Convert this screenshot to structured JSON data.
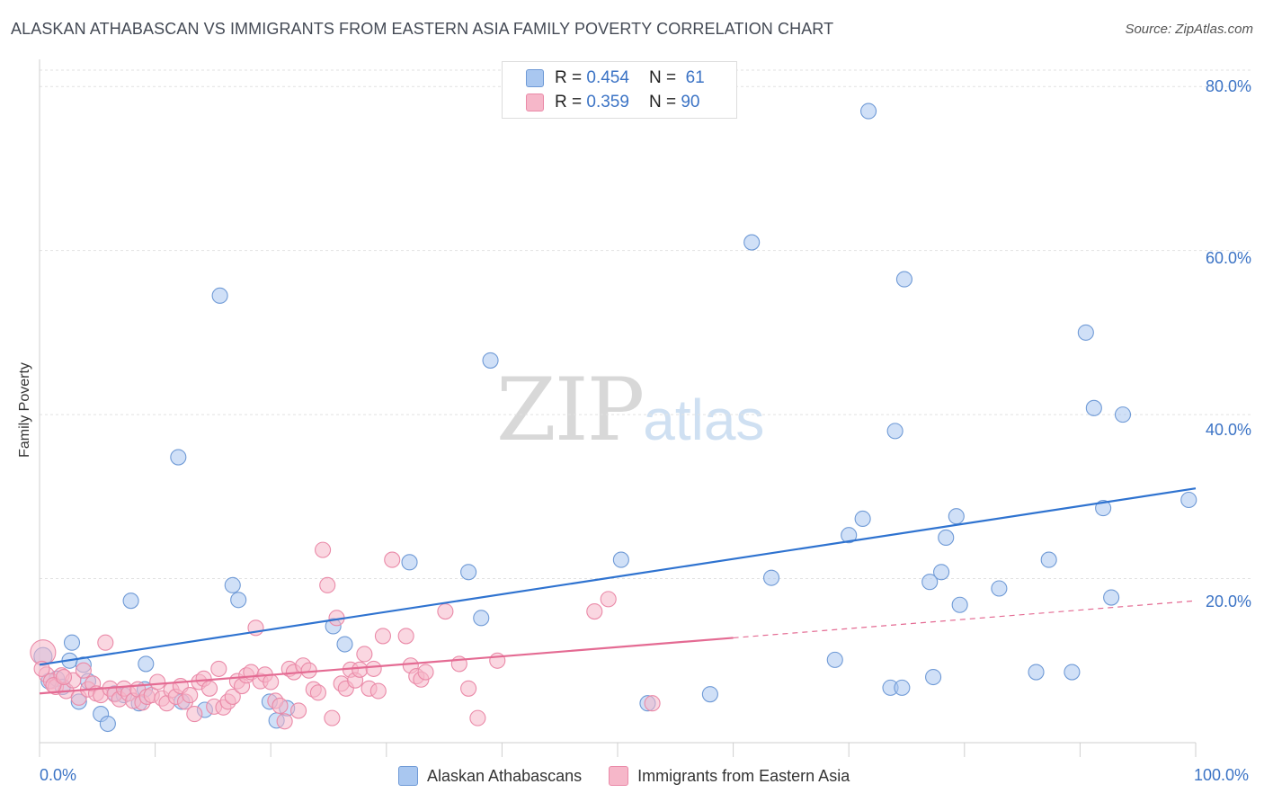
{
  "header": {
    "title": "ALASKAN ATHABASCAN VS IMMIGRANTS FROM EASTERN ASIA FAMILY POVERTY CORRELATION CHART",
    "source": "Source: ZipAtlas.com"
  },
  "watermark": {
    "zip": "ZIP",
    "atlas": "atlas"
  },
  "legend_stats": [
    {
      "r_label": "R = ",
      "r_value": "0.454",
      "n_label": "N = ",
      "n_value": "61",
      "color": "#a9c7f0"
    },
    {
      "r_label": "R = ",
      "r_value": "0.359",
      "n_label": "N = ",
      "n_value": "90",
      "color": "#f6b7c9"
    }
  ],
  "chart_data": {
    "type": "scatter",
    "title": "ALASKAN ATHABASCAN VS IMMIGRANTS FROM EASTERN ASIA FAMILY POVERTY CORRELATION CHART",
    "xlabel": "",
    "ylabel": "Family Poverty",
    "xlim": [
      0,
      100
    ],
    "ylim": [
      0,
      82
    ],
    "grid": true,
    "x_tick_labels": [
      "0.0%",
      "100.0%"
    ],
    "y_ticks": [
      20,
      40,
      60,
      80
    ],
    "y_tick_labels": [
      "20.0%",
      "40.0%",
      "60.0%",
      "80.0%"
    ],
    "series": [
      {
        "name": "Alaskan Athabascans",
        "color": "#a9c7f0",
        "stroke": "#6f9ad6",
        "trend": {
          "x0": 0,
          "y0": 9.5,
          "x1": 100,
          "y1": 31.0,
          "dashed_from": null,
          "color": "#2f73d0"
        },
        "points": [
          [
            0.3,
            10.5
          ],
          [
            0.8,
            7.5
          ],
          [
            1.5,
            7.8
          ],
          [
            2.0,
            6.8
          ],
          [
            2.6,
            10.0
          ],
          [
            2.8,
            12.2
          ],
          [
            3.4,
            5.0
          ],
          [
            3.8,
            9.5
          ],
          [
            4.2,
            7.5
          ],
          [
            5.3,
            3.5
          ],
          [
            5.9,
            2.3
          ],
          [
            6.5,
            6.0
          ],
          [
            7.3,
            5.8
          ],
          [
            7.9,
            17.3
          ],
          [
            8.6,
            4.8
          ],
          [
            9.1,
            6.5
          ],
          [
            9.2,
            9.6
          ],
          [
            12.0,
            34.8
          ],
          [
            12.3,
            5.0
          ],
          [
            14.3,
            4.0
          ],
          [
            15.6,
            54.5
          ],
          [
            16.7,
            19.2
          ],
          [
            17.2,
            17.4
          ],
          [
            19.9,
            5.0
          ],
          [
            20.5,
            2.7
          ],
          [
            21.4,
            4.2
          ],
          [
            25.4,
            14.2
          ],
          [
            26.4,
            12.0
          ],
          [
            32.0,
            22.0
          ],
          [
            37.1,
            20.8
          ],
          [
            38.2,
            15.2
          ],
          [
            39.0,
            46.6
          ],
          [
            50.3,
            22.3
          ],
          [
            52.6,
            4.8
          ],
          [
            58.0,
            5.9
          ],
          [
            61.6,
            61.0
          ],
          [
            63.3,
            20.1
          ],
          [
            68.8,
            10.1
          ],
          [
            70.0,
            25.3
          ],
          [
            71.2,
            27.3
          ],
          [
            71.7,
            77.0
          ],
          [
            73.6,
            6.7
          ],
          [
            74.0,
            38.0
          ],
          [
            74.6,
            6.7
          ],
          [
            74.8,
            56.5
          ],
          [
            77.0,
            19.6
          ],
          [
            77.3,
            8.0
          ],
          [
            78.0,
            20.8
          ],
          [
            78.4,
            25.0
          ],
          [
            79.3,
            27.6
          ],
          [
            79.6,
            16.8
          ],
          [
            83.0,
            18.8
          ],
          [
            86.2,
            8.6
          ],
          [
            87.3,
            22.3
          ],
          [
            89.3,
            8.6
          ],
          [
            90.5,
            50.0
          ],
          [
            91.2,
            40.8
          ],
          [
            92.0,
            28.6
          ],
          [
            92.7,
            17.7
          ],
          [
            93.7,
            40.0
          ],
          [
            99.4,
            29.6
          ]
        ]
      },
      {
        "name": "Immigrants from Eastern Asia",
        "color": "#f6b7c9",
        "stroke": "#ea8aa8",
        "trend": {
          "x0": 0,
          "y0": 6.0,
          "x1": 100,
          "y1": 17.3,
          "dashed_from": 60,
          "color": "#e46b93"
        },
        "points": [
          [
            0.3,
            11.0
          ],
          [
            0.6,
            8.3
          ],
          [
            1.0,
            7.5
          ],
          [
            1.4,
            6.8
          ],
          [
            1.9,
            8.2
          ],
          [
            2.3,
            6.3
          ],
          [
            2.9,
            7.6
          ],
          [
            3.4,
            5.5
          ],
          [
            3.8,
            8.8
          ],
          [
            4.2,
            6.5
          ],
          [
            4.6,
            7.2
          ],
          [
            4.9,
            6.0
          ],
          [
            5.3,
            5.8
          ],
          [
            5.7,
            12.2
          ],
          [
            6.1,
            6.6
          ],
          [
            6.5,
            5.9
          ],
          [
            6.9,
            5.3
          ],
          [
            7.3,
            6.6
          ],
          [
            7.7,
            6.0
          ],
          [
            8.1,
            5.1
          ],
          [
            8.5,
            6.5
          ],
          [
            8.9,
            4.9
          ],
          [
            9.3,
            5.6
          ],
          [
            9.7,
            5.8
          ],
          [
            10.2,
            7.4
          ],
          [
            10.6,
            5.4
          ],
          [
            11.0,
            4.8
          ],
          [
            11.4,
            6.4
          ],
          [
            11.8,
            5.6
          ],
          [
            12.2,
            6.9
          ],
          [
            12.6,
            5.0
          ],
          [
            13.0,
            5.8
          ],
          [
            13.4,
            3.5
          ],
          [
            13.8,
            7.4
          ],
          [
            14.2,
            7.8
          ],
          [
            14.7,
            6.6
          ],
          [
            15.1,
            4.4
          ],
          [
            15.5,
            9.0
          ],
          [
            15.9,
            4.3
          ],
          [
            16.3,
            5.0
          ],
          [
            16.7,
            5.6
          ],
          [
            17.1,
            7.5
          ],
          [
            17.5,
            6.9
          ],
          [
            17.9,
            8.2
          ],
          [
            18.3,
            8.6
          ],
          [
            18.7,
            14.0
          ],
          [
            19.1,
            7.5
          ],
          [
            19.5,
            8.3
          ],
          [
            20.0,
            7.4
          ],
          [
            20.4,
            5.1
          ],
          [
            20.8,
            4.5
          ],
          [
            21.2,
            2.6
          ],
          [
            21.6,
            9.0
          ],
          [
            22.0,
            8.6
          ],
          [
            22.4,
            3.9
          ],
          [
            22.8,
            9.4
          ],
          [
            23.3,
            8.8
          ],
          [
            23.7,
            6.5
          ],
          [
            24.1,
            6.1
          ],
          [
            24.5,
            23.5
          ],
          [
            24.9,
            19.2
          ],
          [
            25.3,
            3.0
          ],
          [
            25.7,
            15.2
          ],
          [
            26.1,
            7.2
          ],
          [
            26.5,
            6.6
          ],
          [
            26.9,
            8.9
          ],
          [
            27.3,
            7.6
          ],
          [
            27.7,
            8.9
          ],
          [
            28.1,
            10.8
          ],
          [
            28.5,
            6.6
          ],
          [
            28.9,
            9.0
          ],
          [
            29.3,
            6.3
          ],
          [
            29.7,
            13.0
          ],
          [
            30.5,
            22.3
          ],
          [
            31.7,
            13.0
          ],
          [
            32.1,
            9.4
          ],
          [
            32.6,
            8.1
          ],
          [
            33.0,
            7.7
          ],
          [
            33.4,
            8.6
          ],
          [
            35.1,
            16.0
          ],
          [
            36.3,
            9.6
          ],
          [
            37.1,
            6.6
          ],
          [
            37.9,
            3.0
          ],
          [
            39.6,
            10.0
          ],
          [
            48.0,
            16.0
          ],
          [
            49.2,
            17.5
          ],
          [
            53.0,
            4.8
          ],
          [
            0.2,
            9.0
          ],
          [
            1.2,
            7.0
          ],
          [
            2.1,
            8.0
          ]
        ]
      }
    ]
  },
  "legend_bottom": [
    {
      "label": "Alaskan Athabascans",
      "color": "#a9c7f0"
    },
    {
      "label": "Immigrants from Eastern Asia",
      "color": "#f6b7c9"
    }
  ]
}
